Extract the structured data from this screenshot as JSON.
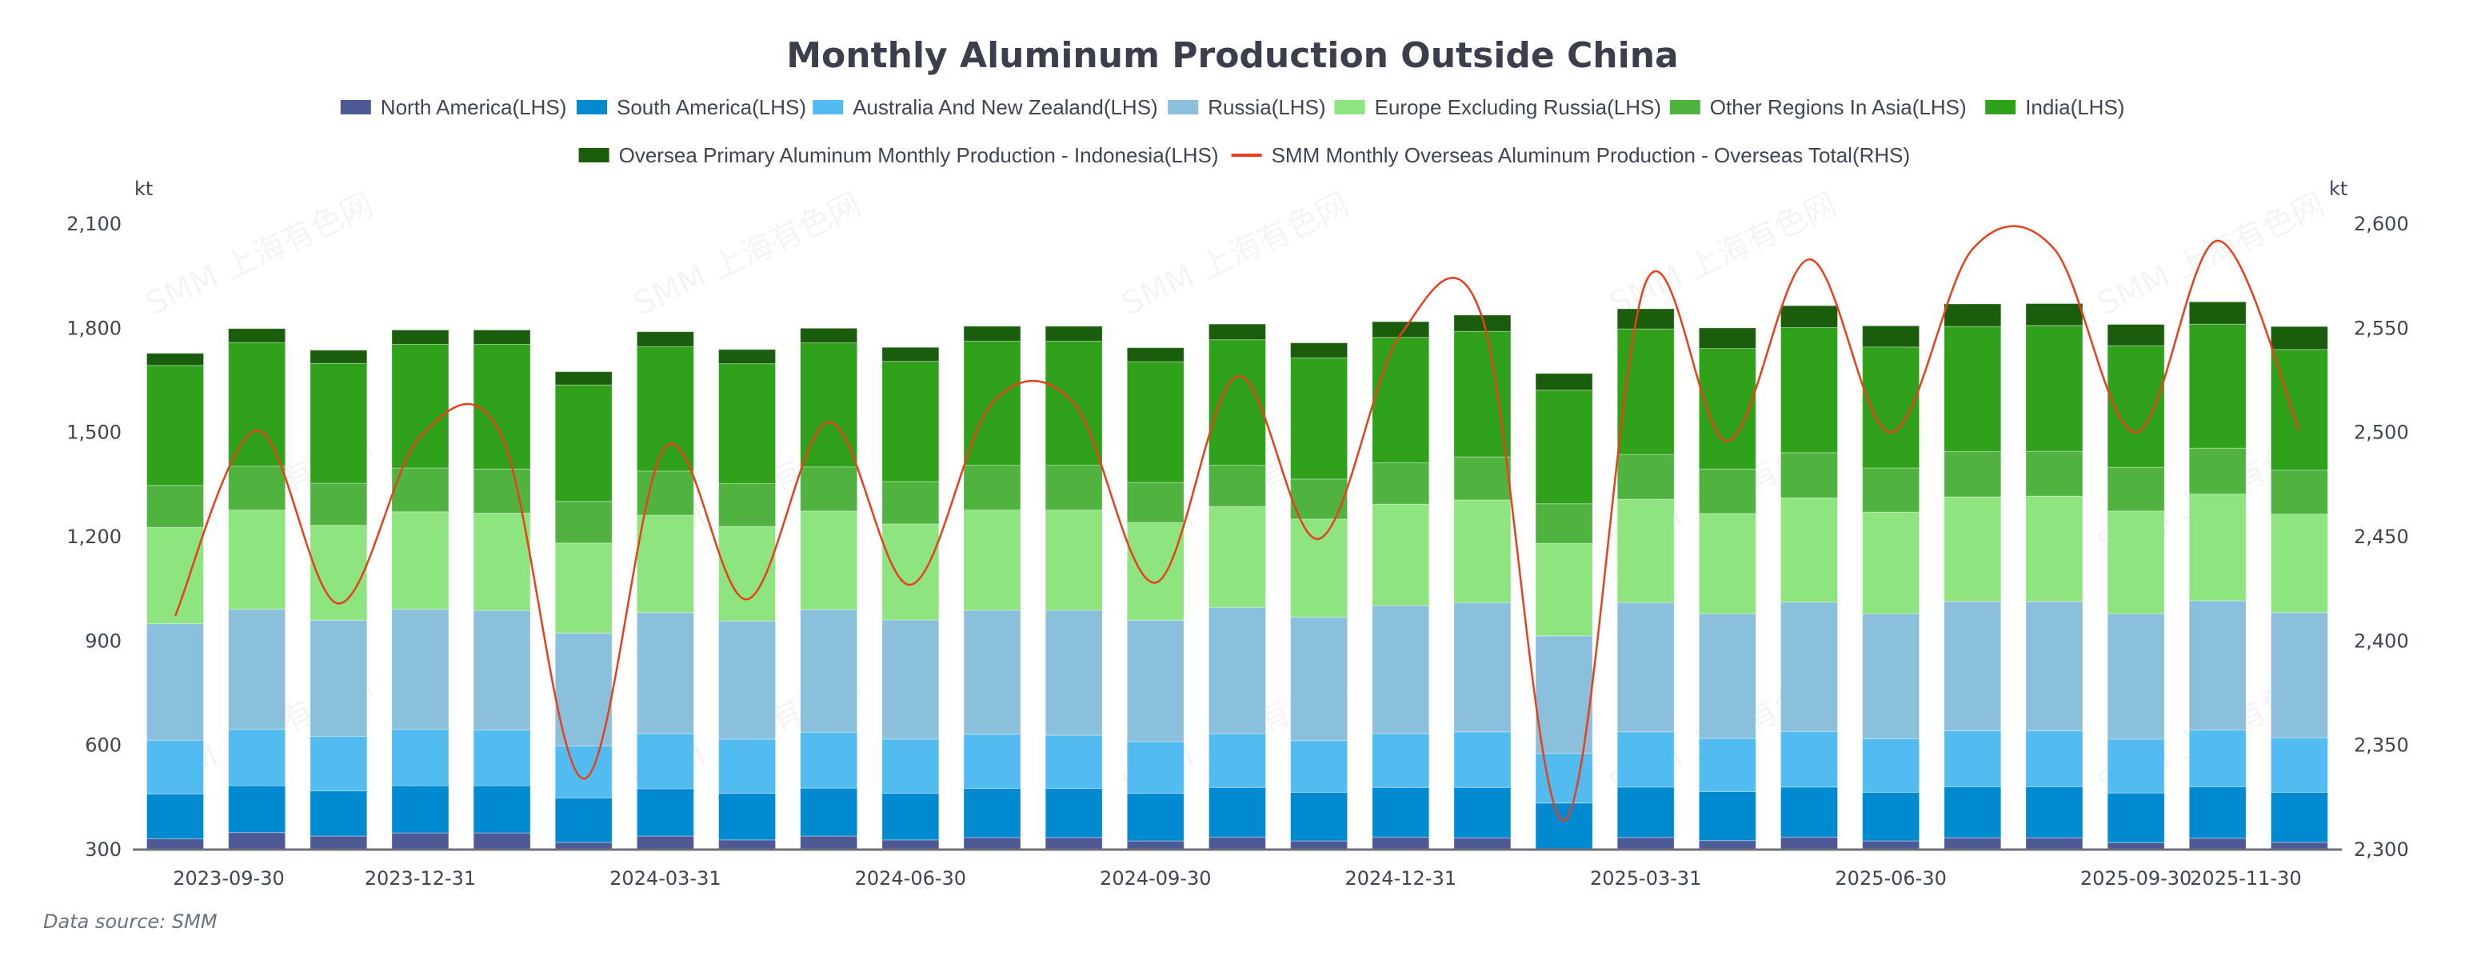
{
  "chart_data": {
    "type": "bar",
    "stacked": true,
    "title": "Monthly Aluminum Production Outside China",
    "source": "Data source:  SMM",
    "watermark": "SMM 上海有色网",
    "left_axis": {
      "unit": "kt",
      "min": 300,
      "max": 2100,
      "ticks": [
        300,
        600,
        900,
        1200,
        1500,
        1800,
        2100
      ],
      "tick_labels": [
        "300",
        "600",
        "900",
        "1,200",
        "1,500",
        "1,800",
        "2,100"
      ]
    },
    "right_axis": {
      "unit": "kt",
      "min": 2300,
      "max": 2600,
      "ticks": [
        2300,
        2350,
        2400,
        2450,
        2500,
        2550,
        2600
      ],
      "tick_labels": [
        "2,300",
        "2,350",
        "2,400",
        "2,450",
        "2,500",
        "2,550",
        "2,600"
      ]
    },
    "grid": false,
    "legend_position": "top-center",
    "categories": [
      "2023-09-30",
      "2023-10-31",
      "2023-11-30",
      "2023-12-31",
      "2024-01-31",
      "2024-02-29",
      "2024-03-31",
      "2024-04-30",
      "2024-05-31",
      "2024-06-30",
      "2024-07-31",
      "2024-08-31",
      "2024-09-30",
      "2024-10-31",
      "2024-11-30",
      "2024-12-31",
      "2025-01-31",
      "2025-02-28",
      "2025-03-31",
      "2025-04-30",
      "2025-05-31",
      "2025-06-30",
      "2025-07-31",
      "2025-08-31",
      "2025-09-30",
      "2025-10-31",
      "2025-11-30"
    ],
    "x_tick_labels": [
      {
        "index": 0,
        "label": "2023-09-30"
      },
      {
        "index": 3,
        "label": "2023-12-31"
      },
      {
        "index": 6,
        "label": "2024-03-31"
      },
      {
        "index": 9,
        "label": "2024-06-30"
      },
      {
        "index": 12,
        "label": "2024-09-30"
      },
      {
        "index": 15,
        "label": "2024-12-31"
      },
      {
        "index": 18,
        "label": "2025-03-31"
      },
      {
        "index": 21,
        "label": "2025-06-30"
      },
      {
        "index": 24,
        "label": "2025-09-30"
      },
      {
        "index": 26,
        "label": "2025-11-30"
      }
    ],
    "series": [
      {
        "name": "North America(LHS)",
        "axis": "left",
        "type": "bar",
        "color": "#4e5a96",
        "values": [
          331,
          349,
          339,
          348,
          348,
          321,
          339,
          328,
          339,
          328,
          335,
          335,
          325,
          336,
          325,
          336,
          334,
          298,
          335,
          326,
          336,
          325,
          334,
          334,
          320,
          333,
          321
        ]
      },
      {
        "name": "South America(LHS)",
        "axis": "left",
        "type": "bar",
        "color": "#018acf",
        "values": [
          129,
          135,
          130,
          136,
          136,
          128,
          136,
          134,
          138,
          134,
          141,
          141,
          137,
          143,
          140,
          143,
          145,
          136,
          145,
          141,
          144,
          140,
          147,
          147,
          143,
          148,
          144
        ]
      },
      {
        "name": "Australia And New Zealand(LHS)",
        "axis": "left",
        "type": "bar",
        "color": "#52bcf0",
        "values": [
          155,
          162,
          157,
          162,
          160,
          149,
          159,
          156,
          161,
          156,
          156,
          153,
          149,
          155,
          149,
          155,
          160,
          143,
          159,
          153,
          160,
          154,
          161,
          161,
          155,
          163,
          157
        ]
      },
      {
        "name": "Russia(LHS)",
        "axis": "left",
        "type": "bar",
        "color": "#8ac0db",
        "values": [
          335,
          346,
          334,
          346,
          344,
          325,
          348,
          340,
          353,
          343,
          357,
          360,
          349,
          363,
          355,
          368,
          372,
          338,
          372,
          359,
          372,
          360,
          372,
          372,
          361,
          372,
          360
        ]
      },
      {
        "name": "Europe Excluding Russia(LHS)",
        "axis": "left",
        "type": "bar",
        "color": "#8ee47e",
        "values": [
          277,
          285,
          273,
          280,
          280,
          259,
          280,
          272,
          283,
          276,
          288,
          288,
          281,
          290,
          282,
          292,
          295,
          266,
          297,
          288,
          300,
          292,
          301,
          303,
          295,
          307,
          283
        ]
      },
      {
        "name": "Other Regions In Asia(LHS)",
        "axis": "left",
        "type": "bar",
        "color": "#50b340",
        "values": [
          121,
          126,
          121,
          126,
          127,
          120,
          127,
          123,
          127,
          122,
          129,
          129,
          115,
          119,
          115,
          119,
          124,
          114,
          129,
          128,
          130,
          127,
          130,
          129,
          126,
          132,
          127
        ]
      },
      {
        "name": "India(LHS)",
        "axis": "left",
        "type": "bar",
        "color": "#30a11b",
        "values": [
          345,
          356,
          345,
          356,
          359,
          335,
          358,
          345,
          357,
          346,
          357,
          357,
          348,
          361,
          349,
          361,
          361,
          327,
          361,
          347,
          360,
          348,
          360,
          362,
          350,
          357,
          347
        ]
      },
      {
        "name": "Oversea Primary Aluminum Monthly Production - Indonesia(LHS)",
        "axis": "left",
        "type": "bar",
        "color": "#1a5d0c",
        "values": [
          35,
          40,
          38,
          41,
          41,
          38,
          43,
          41,
          42,
          40,
          43,
          43,
          40,
          45,
          43,
          45,
          47,
          48,
          58,
          59,
          63,
          61,
          65,
          63,
          61,
          64,
          66
        ]
      },
      {
        "name": "SMM Monthly Overseas Aluminum Production - Overseas Total(RHS)",
        "axis": "right",
        "type": "line",
        "color": "#e8401c",
        "values": [
          2412,
          2501,
          2418,
          2498,
          2498,
          2334,
          2493,
          2420,
          2505,
          2427,
          2514,
          2514,
          2428,
          2527,
          2449,
          2547,
          2555,
          2314,
          2572,
          2496,
          2583,
          2500,
          2588,
          2588,
          2500,
          2592,
          2501
        ]
      }
    ]
  }
}
